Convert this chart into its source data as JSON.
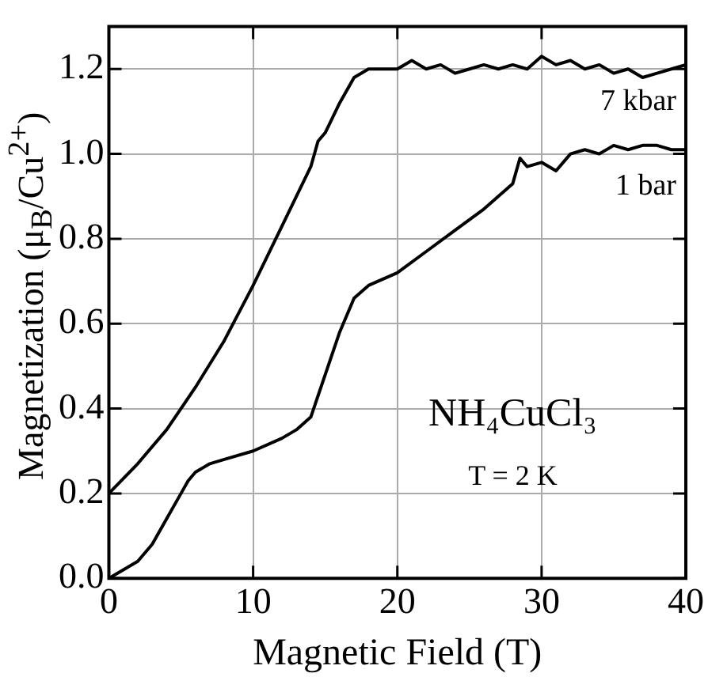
{
  "chart_data": {
    "type": "line",
    "xlabel": "Magnetic Field (T)",
    "ylabel": "Magnetization (μ$_{B}$/Cu$^{2+}$)",
    "xlim": [
      0,
      40
    ],
    "xticks": [
      0,
      10,
      20,
      30,
      40
    ],
    "ylim": [
      0,
      1.3
    ],
    "yticks": [
      {
        "value": 0,
        "label": "0.0"
      },
      0.2,
      0.4,
      0.6,
      0.8,
      {
        "value": 1,
        "label": "1.0"
      },
      1.2
    ],
    "grid": true,
    "legend": "right",
    "marker": "none",
    "line_style": "solid",
    "annotations": [
      "NH₄CuCl₃",
      "T = 2 K"
    ],
    "series": [
      {
        "name": "7 kbar",
        "color": "#000000",
        "x": [
          0,
          2,
          4,
          6,
          8,
          10,
          12,
          14,
          14.5,
          15,
          16,
          17,
          18,
          19,
          20,
          21,
          22,
          23,
          24,
          25,
          26,
          27,
          28,
          29,
          30,
          31,
          32,
          33,
          34,
          35,
          36,
          37,
          38,
          39,
          40
        ],
        "values": [
          0.2,
          0.27,
          0.35,
          0.45,
          0.56,
          0.69,
          0.83,
          0.97,
          1.03,
          1.05,
          1.12,
          1.18,
          1.2,
          1.2,
          1.2,
          1.22,
          1.2,
          1.21,
          1.19,
          1.2,
          1.21,
          1.2,
          1.21,
          1.2,
          1.23,
          1.21,
          1.22,
          1.2,
          1.21,
          1.19,
          1.2,
          1.18,
          1.19,
          1.2,
          1.21
        ]
      },
      {
        "name": "1 bar",
        "color": "#000000",
        "x": [
          0,
          1,
          2,
          3,
          4,
          5,
          5.5,
          6,
          7,
          8,
          10,
          12,
          13,
          14,
          15,
          16,
          17,
          18,
          20,
          22,
          24,
          26,
          27,
          28,
          28.5,
          29,
          30,
          31,
          32,
          33,
          34,
          35,
          36,
          37,
          38,
          39,
          40
        ],
        "values": [
          0,
          0.02,
          0.04,
          0.08,
          0.14,
          0.2,
          0.23,
          0.25,
          0.27,
          0.28,
          0.3,
          0.33,
          0.35,
          0.38,
          0.48,
          0.58,
          0.66,
          0.69,
          0.72,
          0.77,
          0.82,
          0.87,
          0.9,
          0.93,
          0.99,
          0.97,
          0.98,
          0.96,
          1.0,
          1.01,
          1.0,
          1.02,
          1.01,
          1.02,
          1.02,
          1.01,
          1.01
        ]
      }
    ]
  }
}
